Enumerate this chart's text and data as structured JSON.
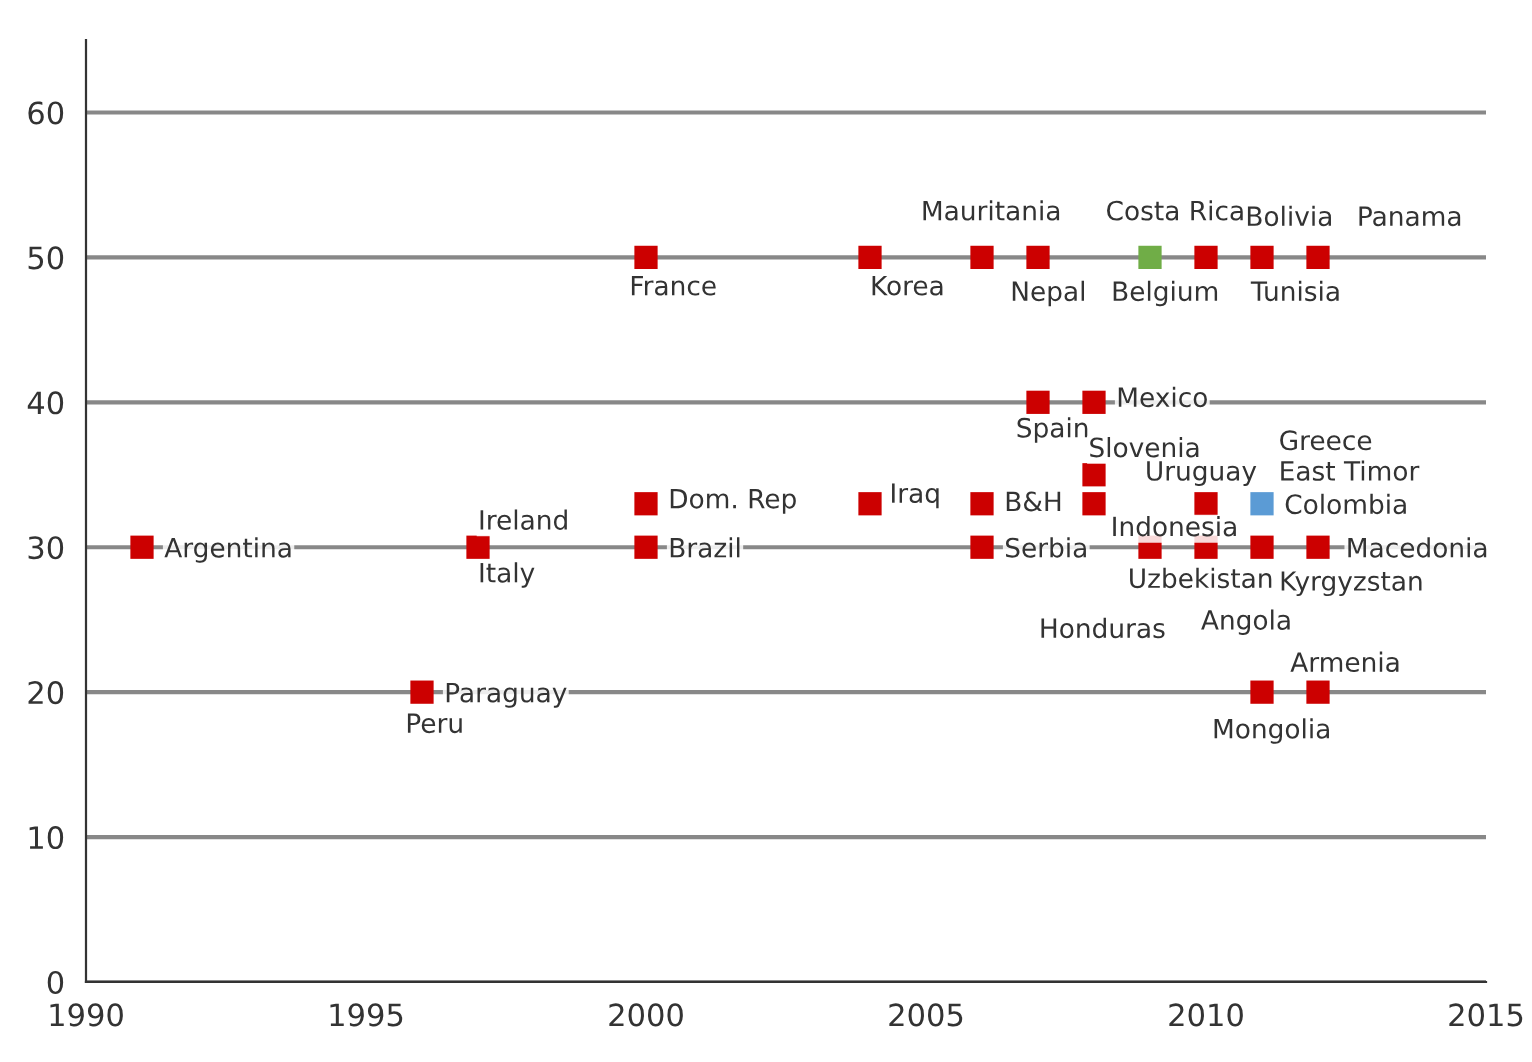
{
  "chart_data": {
    "type": "scatter",
    "x": [
      1991,
      1996,
      1997,
      2000,
      2000,
      2000,
      2004,
      2004,
      2006,
      2007,
      2009,
      2010,
      2011,
      2012,
      2007,
      2008,
      2008,
      2008,
      2006,
      2006,
      2009,
      2010,
      2010,
      2011,
      2011,
      2012,
      2011,
      2012
    ],
    "series": [
      {
        "values": [
          30,
          20,
          30,
          50,
          33,
          30,
          33,
          50,
          50,
          50,
          50,
          50,
          50,
          50,
          40,
          40,
          35,
          33,
          33,
          30,
          30,
          33,
          30,
          33,
          30,
          30,
          20,
          20
        ],
        "colors": [
          "#cc0000",
          "#cc0000",
          "#cc0000",
          "#cc0000",
          "#cc0000",
          "#cc0000",
          "#cc0000",
          "#cc0000",
          "#cc0000",
          "#cc0000",
          "#70ad47",
          "#cc0000",
          "#cc0000",
          "#cc0000",
          "#cc0000",
          "#cc0000",
          "#cc0000",
          "#cc0000",
          "#cc0000",
          "#cc0000",
          "#cc0000",
          "#cc0000",
          "#cc0000",
          "#5b9bd5",
          "#cc0000",
          "#cc0000",
          "#cc0000",
          "#cc0000"
        ]
      }
    ],
    "xlim": [
      1990,
      2015
    ],
    "xticks": [
      1990,
      1995,
      2000,
      2005,
      2010,
      2015
    ],
    "ylim": [
      0,
      65
    ],
    "yticks": [
      0,
      10,
      20,
      30,
      40,
      50,
      60
    ],
    "grid": "y",
    "marker": "square",
    "legend": false,
    "annotations": [
      {
        "text": "Argentina",
        "x": 1991,
        "y": 30
      },
      {
        "text": "Paraguay",
        "x": 1996,
        "y": 20
      },
      {
        "text": "Peru",
        "x": 1996,
        "y": 20
      },
      {
        "text": "Ireland",
        "x": 1997,
        "y": 30
      },
      {
        "text": "Italy",
        "x": 1997,
        "y": 30
      },
      {
        "text": "France",
        "x": 2000,
        "y": 50
      },
      {
        "text": "Dom. Rep",
        "x": 2000,
        "y": 33
      },
      {
        "text": "Brazil",
        "x": 2000,
        "y": 30
      },
      {
        "text": "Iraq",
        "x": 2004,
        "y": 33
      },
      {
        "text": "Korea",
        "x": 2004,
        "y": 50
      },
      {
        "text": "Mauritania",
        "x": 2006,
        "y": 50
      },
      {
        "text": "Nepal",
        "x": 2007,
        "y": 50
      },
      {
        "text": "Costa Rica",
        "x": 2009,
        "y": 50
      },
      {
        "text": "Belgium",
        "x": 2009,
        "y": 50
      },
      {
        "text": "Bolivia",
        "x": 2011,
        "y": 50
      },
      {
        "text": "Tunisia",
        "x": 2011,
        "y": 50
      },
      {
        "text": "Panama",
        "x": 2012,
        "y": 50
      },
      {
        "text": "Spain",
        "x": 2007,
        "y": 40
      },
      {
        "text": "Mexico",
        "x": 2008,
        "y": 40
      },
      {
        "text": "Slovenia",
        "x": 2008,
        "y": 35
      },
      {
        "text": "B&H",
        "x": 2006,
        "y": 33
      },
      {
        "text": "Indonesia",
        "x": 2008,
        "y": 33
      },
      {
        "text": "Uruguay",
        "x": 2010,
        "y": 33
      },
      {
        "text": "Serbia",
        "x": 2006,
        "y": 30
      },
      {
        "text": "Honduras",
        "x": 2009,
        "y": 30
      },
      {
        "text": "Uzbekistan",
        "x": 2009,
        "y": 30
      },
      {
        "text": "Greece",
        "x": 2011,
        "y": 33
      },
      {
        "text": "East Timor",
        "x": 2011,
        "y": 33
      },
      {
        "text": "Colombia",
        "x": 2011,
        "y": 33
      },
      {
        "text": "Macedonia",
        "x": 2012,
        "y": 30
      },
      {
        "text": "Kyrgyzstan",
        "x": 2012,
        "y": 30
      },
      {
        "text": "Angola",
        "x": 2011,
        "y": 30
      },
      {
        "text": "Armenia",
        "x": 2012,
        "y": 20
      },
      {
        "text": "Mongolia",
        "x": 2011,
        "y": 20
      }
    ]
  }
}
